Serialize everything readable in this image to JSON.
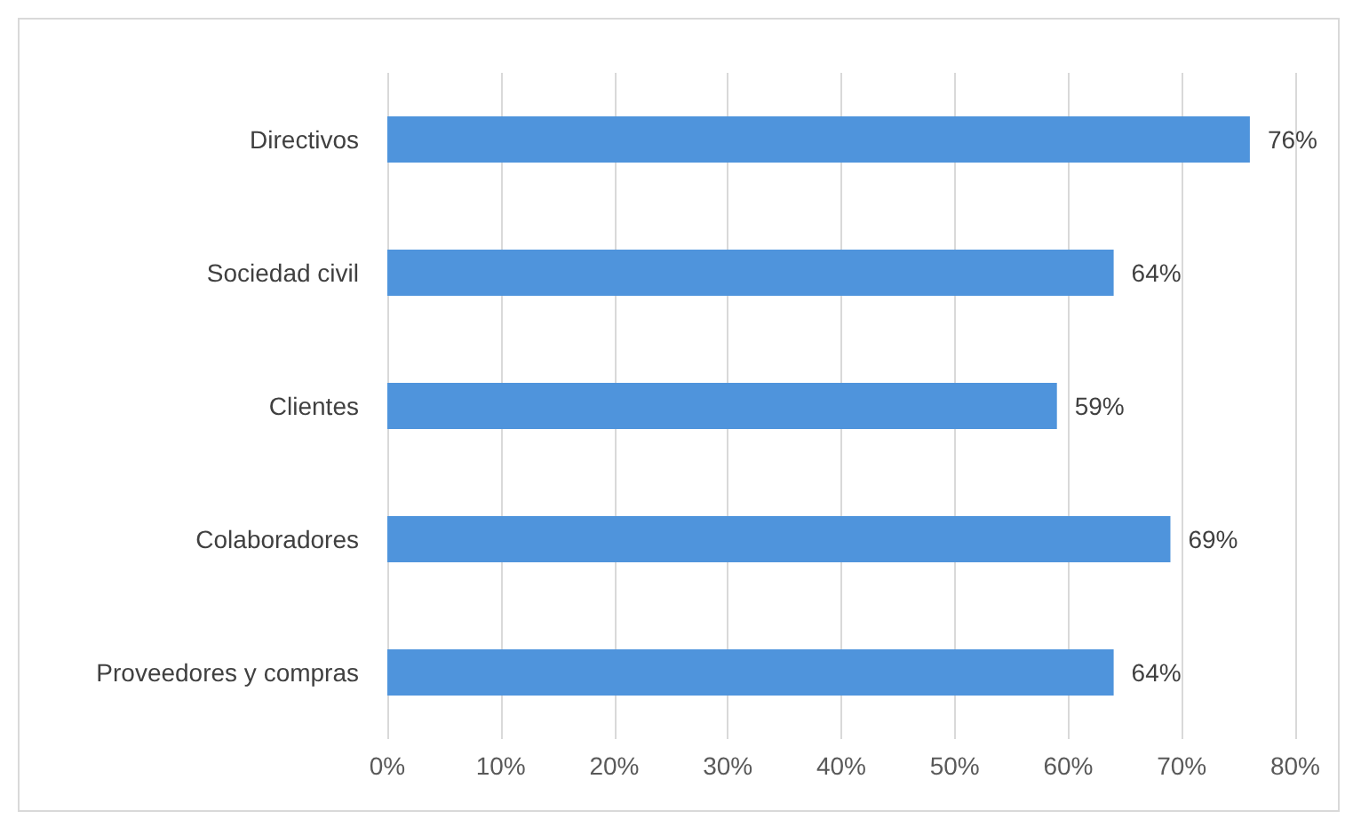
{
  "chart_data": {
    "type": "bar",
    "orientation": "horizontal",
    "categories": [
      "Directivos",
      "Sociedad civil",
      "Clientes",
      "Colaboradores",
      "Proveedores y compras"
    ],
    "values": [
      76,
      64,
      59,
      69,
      64
    ],
    "color": "#4f94dc",
    "value_labels": [
      "76%",
      "64%",
      "59%",
      "69%",
      "64%"
    ],
    "xlim": [
      0,
      80
    ],
    "xticks": [
      {
        "value": 0,
        "label": "0%"
      },
      {
        "value": 10,
        "label": "10%"
      },
      {
        "value": 20,
        "label": "20%"
      },
      {
        "value": 30,
        "label": "30%"
      },
      {
        "value": 40,
        "label": "40%"
      },
      {
        "value": 50,
        "label": "50%"
      },
      {
        "value": 60,
        "label": "60%"
      },
      {
        "value": 70,
        "label": "70%"
      },
      {
        "value": 80,
        "label": "80%"
      }
    ],
    "grid": "x"
  }
}
